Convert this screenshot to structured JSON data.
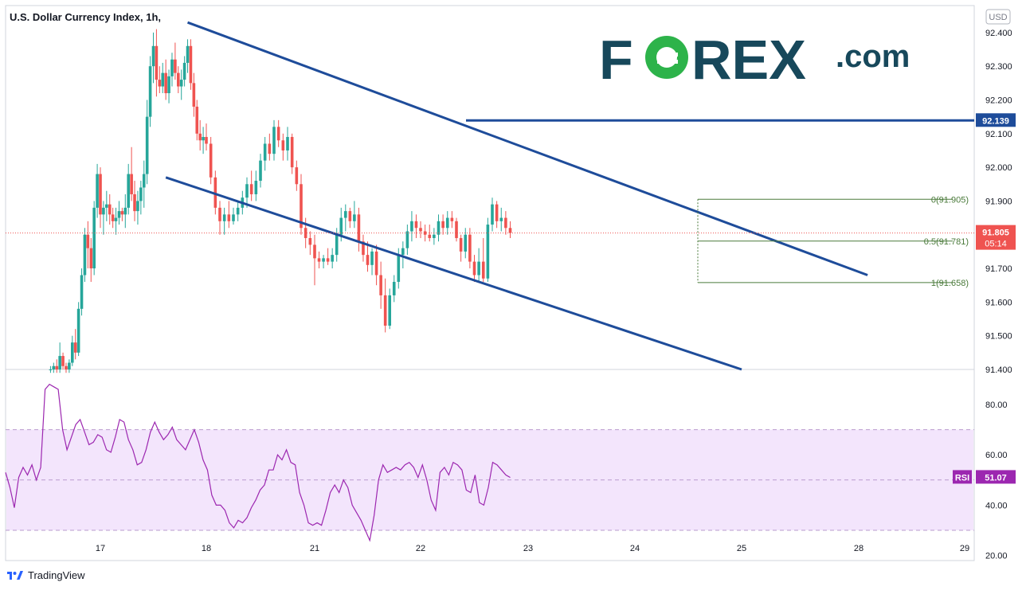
{
  "header": {
    "title": "U.S. Dollar Currency Index, 1h,",
    "currency_badge": "USD"
  },
  "logo": {
    "text_fo": "F",
    "text_rest": "REX",
    "suffix": ".com",
    "brand_color": "#17485b",
    "accent_color": "#2db34a"
  },
  "footer": {
    "brand": "TradingView"
  },
  "colors": {
    "up": "#26a69a",
    "down": "#ef5350",
    "trendline": "#1e4c9a",
    "fib": "#4a7a3a",
    "rsi": "#9c27b0",
    "rsi_band": "#f3e5fc",
    "current_price_bg": "#ef5350",
    "level_bg": "#1e4c9a",
    "rsi_badge_bg": "#9c27b0"
  },
  "chart_data": [
    {
      "type": "candlestick",
      "instrument": "U.S. Dollar Currency Index",
      "timeframe": "1h",
      "ylim": [
        91.4,
        92.48
      ],
      "y_ticks": [
        "92.400",
        "92.300",
        "92.200",
        "92.100",
        "92.000",
        "91.900",
        "91.700",
        "91.600",
        "91.500",
        "91.400"
      ],
      "x_ticks": [
        "17",
        "18",
        "21",
        "22",
        "23",
        "24",
        "25",
        "28",
        "29"
      ],
      "current_price": "91.805",
      "countdown": "05:14",
      "horizontal_level": "92.139",
      "fib_levels": [
        {
          "label": "0(91.905)",
          "value": 91.905
        },
        {
          "label": "0.5(91.781)",
          "value": 91.781
        },
        {
          "label": "1(91.658)",
          "value": 91.658
        }
      ],
      "trendlines": [
        {
          "name": "upper channel",
          "from": [
            "Jul 20 18:00",
            92.43
          ],
          "to": [
            "Jul 28 02:00",
            91.68
          ]
        },
        {
          "name": "lower channel",
          "from": [
            "Jul 20 11:00",
            91.97
          ],
          "to": [
            "Jul 25 00:00",
            91.4
          ]
        }
      ],
      "candles": [
        [
          91.4,
          91.41,
          91.39,
          91.4
        ],
        [
          91.4,
          91.42,
          91.39,
          91.41
        ],
        [
          91.41,
          91.43,
          91.39,
          91.4
        ],
        [
          91.4,
          91.48,
          91.39,
          91.44
        ],
        [
          91.44,
          91.45,
          91.4,
          91.41
        ],
        [
          91.41,
          91.42,
          91.39,
          91.4
        ],
        [
          91.4,
          91.43,
          91.39,
          91.42
        ],
        [
          91.42,
          91.5,
          91.41,
          91.48
        ],
        [
          91.48,
          91.52,
          91.43,
          91.45
        ],
        [
          91.45,
          91.6,
          91.44,
          91.58
        ],
        [
          91.58,
          91.7,
          91.56,
          91.68
        ],
        [
          91.68,
          91.82,
          91.66,
          91.8
        ],
        [
          91.8,
          91.84,
          91.7,
          91.76
        ],
        [
          91.76,
          91.79,
          91.66,
          91.7
        ],
        [
          91.7,
          91.9,
          91.68,
          91.88
        ],
        [
          91.88,
          92.01,
          91.85,
          91.98
        ],
        [
          91.98,
          92.0,
          91.82,
          91.86
        ],
        [
          91.86,
          91.9,
          91.8,
          91.88
        ],
        [
          91.88,
          91.93,
          91.84,
          91.89
        ],
        [
          91.89,
          91.92,
          91.83,
          91.86
        ],
        [
          91.86,
          91.88,
          91.82,
          91.84
        ],
        [
          91.84,
          91.88,
          91.8,
          91.85
        ],
        [
          91.85,
          91.9,
          91.83,
          91.87
        ],
        [
          91.87,
          91.88,
          91.84,
          91.86
        ],
        [
          91.86,
          91.92,
          91.82,
          91.88
        ],
        [
          91.88,
          92.01,
          91.86,
          91.98
        ],
        [
          91.98,
          92.06,
          91.9,
          91.92
        ],
        [
          91.92,
          91.96,
          91.84,
          91.87
        ],
        [
          91.87,
          91.93,
          91.83,
          91.9
        ],
        [
          91.9,
          91.96,
          91.86,
          91.94
        ],
        [
          91.94,
          92.02,
          91.88,
          91.98
        ],
        [
          91.98,
          92.2,
          91.95,
          92.15
        ],
        [
          92.15,
          92.33,
          92.12,
          92.3
        ],
        [
          92.3,
          92.4,
          92.25,
          92.36
        ],
        [
          92.36,
          92.41,
          92.21,
          92.26
        ],
        [
          92.26,
          92.3,
          92.22,
          92.24
        ],
        [
          92.24,
          92.31,
          92.22,
          92.28
        ],
        [
          92.28,
          92.32,
          92.2,
          92.22
        ],
        [
          92.22,
          92.29,
          92.19,
          92.27
        ],
        [
          92.27,
          92.34,
          92.24,
          92.32
        ],
        [
          92.32,
          92.37,
          92.26,
          92.28
        ],
        [
          92.28,
          92.3,
          92.22,
          92.24
        ],
        [
          92.24,
          92.29,
          92.2,
          92.26
        ],
        [
          92.26,
          92.33,
          92.24,
          92.31
        ],
        [
          92.31,
          92.38,
          92.28,
          92.36
        ],
        [
          92.36,
          92.38,
          92.23,
          92.25
        ],
        [
          92.25,
          92.28,
          92.15,
          92.18
        ],
        [
          92.18,
          92.2,
          92.08,
          92.1
        ],
        [
          92.1,
          92.14,
          92.05,
          92.08
        ],
        [
          92.08,
          92.12,
          92.04,
          92.09
        ],
        [
          92.09,
          92.13,
          92.05,
          92.07
        ],
        [
          92.07,
          92.09,
          91.95,
          91.97
        ],
        [
          91.97,
          91.99,
          91.86,
          91.88
        ],
        [
          91.88,
          91.9,
          91.8,
          91.84
        ],
        [
          91.84,
          91.88,
          91.8,
          91.86
        ],
        [
          91.86,
          91.9,
          91.82,
          91.84
        ],
        [
          91.84,
          91.88,
          91.83,
          91.86
        ],
        [
          91.86,
          91.9,
          91.84,
          91.88
        ],
        [
          91.88,
          91.93,
          91.86,
          91.91
        ],
        [
          91.91,
          91.97,
          91.88,
          91.95
        ],
        [
          91.95,
          91.99,
          91.9,
          91.92
        ],
        [
          91.92,
          91.99,
          91.9,
          91.96
        ],
        [
          91.96,
          92.04,
          91.94,
          92.02
        ],
        [
          92.02,
          92.09,
          91.99,
          92.07
        ],
        [
          92.07,
          92.1,
          92.02,
          92.04
        ],
        [
          92.04,
          92.14,
          92.02,
          92.12
        ],
        [
          92.12,
          92.14,
          92.06,
          92.08
        ],
        [
          92.08,
          92.1,
          92.02,
          92.05
        ],
        [
          92.05,
          92.12,
          92.02,
          92.09
        ],
        [
          92.09,
          92.1,
          91.98,
          92.0
        ],
        [
          92.0,
          92.02,
          91.93,
          91.95
        ],
        [
          91.95,
          91.98,
          91.8,
          91.82
        ],
        [
          91.82,
          91.85,
          91.76,
          91.79
        ],
        [
          91.79,
          91.81,
          91.74,
          91.77
        ],
        [
          91.77,
          91.8,
          91.65,
          91.73
        ],
        [
          91.73,
          91.75,
          91.7,
          91.72
        ],
        [
          91.72,
          91.74,
          91.7,
          91.73
        ],
        [
          91.73,
          91.76,
          91.71,
          91.72
        ],
        [
          91.72,
          91.76,
          91.7,
          91.74
        ],
        [
          91.74,
          91.82,
          91.72,
          91.8
        ],
        [
          91.8,
          91.88,
          91.78,
          91.85
        ],
        [
          91.85,
          91.89,
          91.81,
          91.87
        ],
        [
          91.87,
          91.88,
          91.82,
          91.84
        ],
        [
          91.84,
          91.9,
          91.82,
          91.86
        ],
        [
          91.86,
          91.88,
          91.75,
          91.78
        ],
        [
          91.78,
          91.8,
          91.72,
          91.74
        ],
        [
          91.74,
          91.78,
          91.69,
          91.71
        ],
        [
          91.71,
          91.76,
          91.68,
          91.75
        ],
        [
          91.75,
          91.77,
          91.65,
          91.68
        ],
        [
          91.68,
          91.72,
          91.58,
          91.62
        ],
        [
          91.62,
          91.67,
          91.51,
          91.53
        ],
        [
          91.53,
          91.64,
          91.52,
          91.62
        ],
        [
          91.62,
          91.68,
          91.6,
          91.66
        ],
        [
          91.66,
          91.76,
          91.64,
          91.74
        ],
        [
          91.74,
          91.78,
          91.7,
          91.76
        ],
        [
          91.76,
          91.83,
          91.74,
          91.81
        ],
        [
          91.81,
          91.87,
          91.78,
          91.84
        ],
        [
          91.84,
          91.86,
          91.79,
          91.82
        ],
        [
          91.82,
          91.84,
          91.79,
          91.81
        ],
        [
          91.81,
          91.83,
          91.78,
          91.8
        ],
        [
          91.8,
          91.83,
          91.78,
          91.79
        ],
        [
          91.79,
          91.82,
          91.77,
          91.8
        ],
        [
          91.8,
          91.86,
          91.78,
          91.84
        ],
        [
          91.84,
          91.86,
          91.8,
          91.82
        ],
        [
          91.82,
          91.87,
          91.8,
          91.85
        ],
        [
          91.85,
          91.87,
          91.82,
          91.84
        ],
        [
          91.84,
          91.85,
          91.78,
          91.79
        ],
        [
          91.79,
          91.8,
          91.72,
          91.75
        ],
        [
          91.75,
          91.82,
          91.73,
          91.8
        ],
        [
          91.8,
          91.82,
          91.7,
          91.72
        ],
        [
          91.72,
          91.74,
          91.66,
          91.68
        ],
        [
          91.68,
          91.76,
          91.66,
          91.72
        ],
        [
          91.72,
          91.79,
          91.66,
          91.67
        ],
        [
          91.67,
          91.85,
          91.66,
          91.83
        ],
        [
          91.83,
          91.91,
          91.81,
          91.89
        ],
        [
          91.89,
          91.9,
          91.82,
          91.84
        ],
        [
          91.84,
          91.88,
          91.81,
          91.85
        ],
        [
          91.85,
          91.87,
          91.8,
          91.82
        ],
        [
          91.82,
          91.84,
          91.79,
          91.805
        ]
      ]
    },
    {
      "type": "line",
      "name": "RSI",
      "ylim": [
        18,
        92
      ],
      "y_ticks": [
        "80.00",
        "60.00",
        "40.00",
        "20.00"
      ],
      "band": [
        30,
        70
      ],
      "mid_line": 50,
      "current_value": "51.07",
      "values": [
        53,
        47,
        39,
        51,
        55,
        52,
        56,
        50,
        55,
        86,
        88,
        87,
        86,
        70,
        62,
        67,
        72,
        74,
        69,
        64,
        65,
        68,
        67,
        62,
        61,
        67,
        74,
        73,
        66,
        62,
        56,
        57,
        62,
        69,
        73,
        69,
        66,
        68,
        71,
        66,
        64,
        62,
        66,
        70,
        65,
        58,
        54,
        44,
        40,
        40,
        38,
        33,
        31,
        34,
        33,
        35,
        39,
        42,
        46,
        48,
        54,
        54,
        60,
        58,
        62,
        57,
        56,
        45,
        40,
        33,
        32,
        33,
        32,
        38,
        45,
        48,
        45,
        50,
        47,
        40,
        37,
        34,
        30,
        26,
        36,
        50,
        56,
        53,
        54,
        55,
        54,
        56,
        57,
        55,
        51,
        56,
        50,
        42,
        38,
        53,
        55,
        52,
        57,
        56,
        54,
        46,
        45,
        52,
        41,
        40,
        47,
        57,
        56,
        54,
        52,
        51
      ]
    }
  ]
}
